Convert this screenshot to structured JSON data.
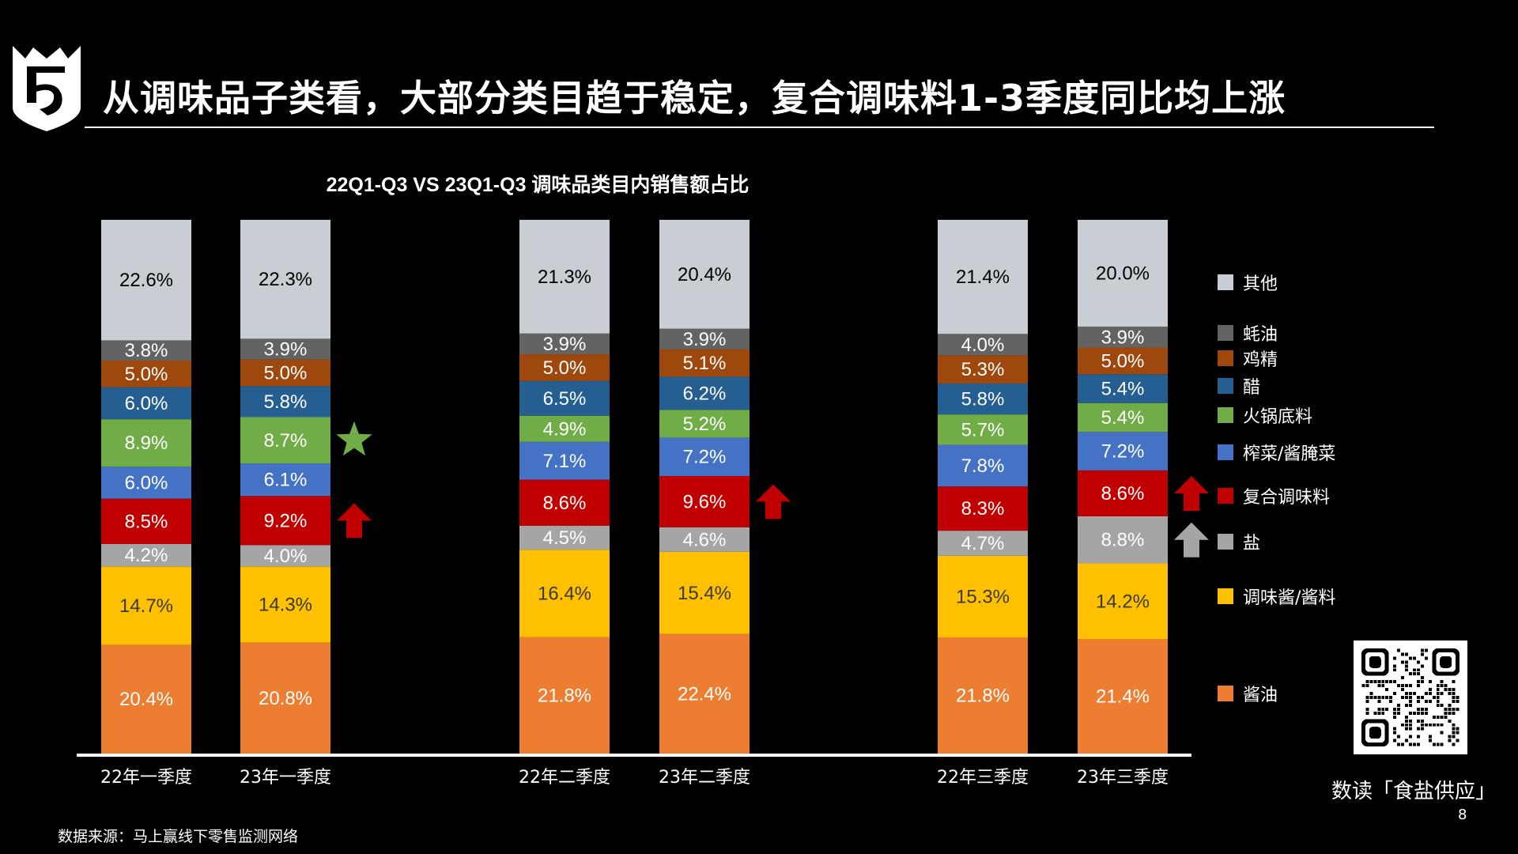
{
  "header": {
    "title": "从调味品子类看，大部分类目趋于稳定，复合调味料1-3季度同比均上涨",
    "logo_icon": "shield-crown-logo-icon"
  },
  "chart_data": {
    "type": "bar",
    "stacked": true,
    "title": "22Q1-Q3 VS 23Q1-Q3 调味品类目内销售额占比",
    "xlabel": "",
    "ylabel": "",
    "ylim": [
      0,
      100
    ],
    "grid": false,
    "legend_position": "right",
    "categories": [
      "22年一季度",
      "23年一季度",
      "22年二季度",
      "23年二季度",
      "22年三季度",
      "23年三季度"
    ],
    "groups": [
      [
        0,
        1
      ],
      [
        2,
        3
      ],
      [
        4,
        5
      ]
    ],
    "series": [
      {
        "name": "酱油",
        "color": "#ED7D31",
        "label_color": "#FFFFFF",
        "values": [
          20.4,
          20.8,
          21.8,
          22.4,
          21.8,
          21.4
        ]
      },
      {
        "name": "调味酱/酱料",
        "color": "#FFC000",
        "label_color": "#3A3A3A",
        "values": [
          14.7,
          14.3,
          16.4,
          15.4,
          15.3,
          14.2
        ]
      },
      {
        "name": "盐",
        "color": "#A5A5A5",
        "label_color": "#FFFFFF",
        "values": [
          4.2,
          4.0,
          4.5,
          4.6,
          4.7,
          8.8
        ]
      },
      {
        "name": "复合调味料",
        "color": "#C00000",
        "label_color": "#FFFFFF",
        "values": [
          8.5,
          9.2,
          8.6,
          9.6,
          8.3,
          8.6
        ]
      },
      {
        "name": "榨菜/酱腌菜",
        "color": "#4472C4",
        "label_color": "#FFFFFF",
        "values": [
          6.0,
          6.1,
          7.1,
          7.2,
          7.8,
          7.2
        ]
      },
      {
        "name": "火锅底料",
        "color": "#70AD47",
        "label_color": "#FFFFFF",
        "values": [
          8.9,
          8.7,
          4.9,
          5.2,
          5.7,
          5.4
        ]
      },
      {
        "name": "醋",
        "color": "#255E91",
        "label_color": "#FFFFFF",
        "values": [
          6.0,
          5.8,
          6.5,
          6.2,
          5.8,
          5.4
        ]
      },
      {
        "name": "鸡精",
        "color": "#9E480E",
        "label_color": "#FFFFFF",
        "values": [
          5.0,
          5.0,
          5.0,
          5.1,
          5.3,
          5.0
        ]
      },
      {
        "name": "蚝油",
        "color": "#636363",
        "label_color": "#FFFFFF",
        "values": [
          3.8,
          3.9,
          3.9,
          3.9,
          4.0,
          3.9
        ]
      },
      {
        "name": "其他",
        "color": "#C9CDD4",
        "label_color": "#000000",
        "values": [
          22.6,
          22.3,
          21.3,
          20.4,
          21.4,
          20.0
        ]
      }
    ],
    "annotations": [
      {
        "type": "star",
        "category": "23年一季度",
        "series": "火锅底料",
        "color": "#70AD47"
      },
      {
        "type": "up-arrow",
        "category": "23年一季度",
        "series": "复合调味料",
        "color": "#C00000"
      },
      {
        "type": "up-arrow",
        "category": "23年二季度",
        "series": "复合调味料",
        "color": "#C00000"
      },
      {
        "type": "up-arrow",
        "category": "23年三季度",
        "series": "复合调味料",
        "color": "#C00000"
      },
      {
        "type": "up-arrow",
        "category": "23年三季度",
        "series": "盐",
        "color": "#A5A5A5"
      }
    ]
  },
  "legend": [
    {
      "name": "其他",
      "color": "#C9CDD4"
    },
    {
      "name": "蚝油",
      "color": "#636363"
    },
    {
      "name": "鸡精",
      "color": "#9E480E"
    },
    {
      "name": "醋",
      "color": "#255E91"
    },
    {
      "name": "火锅底料",
      "color": "#70AD47"
    },
    {
      "name": "榨菜/酱腌菜",
      "color": "#4472C4"
    },
    {
      "name": "复合调味料",
      "color": "#C00000"
    },
    {
      "name": "盐",
      "color": "#A5A5A5"
    },
    {
      "name": "调味酱/酱料",
      "color": "#FFC000"
    },
    {
      "name": "酱油",
      "color": "#ED7D31"
    }
  ],
  "footer": {
    "source": "数据来源：马上赢线下零售监测网络",
    "brand": "数读「食盐供应」",
    "page_number": "8",
    "qr_icon": "qr-code-icon"
  }
}
